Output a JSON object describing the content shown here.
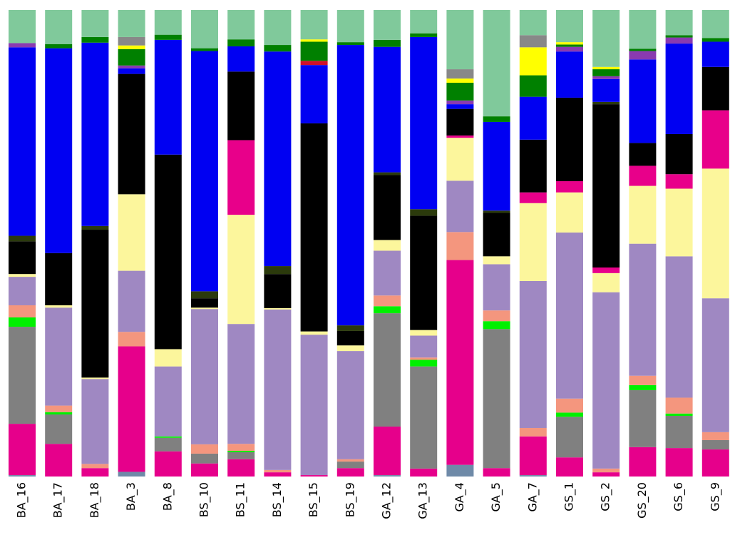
{
  "chart_data": {
    "type": "stacked_bar",
    "categories": [
      "BA_16",
      "BA_17",
      "BA_18",
      "BA_3",
      "BA_8",
      "BS_10",
      "BS_11",
      "BS_14",
      "BS_15",
      "BS_19",
      "GA_12",
      "GA_13",
      "GA_4",
      "GA_5",
      "GA_7",
      "GS_1",
      "GS_2",
      "GS_20",
      "GS_6",
      "GS_9"
    ],
    "ylim": [
      0,
      100
    ],
    "series": [
      {
        "color": "#6f8aa8",
        "values": [
          0.3,
          0,
          0,
          1,
          0,
          0,
          0,
          0,
          0,
          0,
          0.3,
          0,
          2.5,
          0,
          0.3,
          0,
          0,
          0,
          0,
          0
        ]
      },
      {
        "color": "#e6008b",
        "values": [
          11,
          7,
          1.8,
          26.9,
          5.4,
          2.8,
          3.7,
          0.9,
          0.3,
          1.8,
          10.4,
          1.7,
          43.9,
          1.8,
          8.3,
          4.1,
          0.9,
          6.3,
          6.1,
          5.8
        ]
      },
      {
        "color": "#808080",
        "values": [
          20.8,
          6.3,
          0,
          0,
          2.9,
          2.1,
          1.5,
          0,
          0,
          1.4,
          24.3,
          21.9,
          0,
          29.8,
          0,
          8.7,
          0,
          12.2,
          6.9,
          2
        ]
      },
      {
        "color": "#00f000",
        "values": [
          2,
          0.5,
          0,
          0,
          0.3,
          0,
          0.3,
          0,
          0,
          0,
          1.5,
          1.4,
          0,
          1.7,
          0,
          0.9,
          0,
          1.1,
          0.5,
          0
        ]
      },
      {
        "color": "#f4967e",
        "values": [
          2.6,
          1.4,
          0.9,
          3.1,
          0,
          2,
          1.5,
          0.5,
          0,
          0.5,
          2.3,
          0.5,
          6,
          2.3,
          1.8,
          3,
          0.8,
          2,
          3.4,
          1.7
        ]
      },
      {
        "color": "#9f88c2",
        "values": [
          6.1,
          21,
          18.2,
          13.1,
          15,
          29,
          25.7,
          34.4,
          30.1,
          23.2,
          9.6,
          4.7,
          11,
          9.9,
          31.5,
          35.6,
          37.8,
          28.3,
          30.3,
          28.7
        ]
      },
      {
        "color": "#fcf69c",
        "values": [
          0.6,
          0.5,
          0.3,
          16.4,
          3.7,
          0.3,
          23.4,
          0.3,
          0.7,
          1.2,
          2.3,
          1.2,
          9.2,
          1.7,
          16.7,
          8.6,
          4.1,
          12.4,
          14.5,
          27.8
        ]
      },
      {
        "color": "#e8008a",
        "values": [
          0,
          0,
          0,
          0,
          0,
          0,
          16,
          0,
          0,
          0,
          0,
          0,
          0.5,
          0,
          2.3,
          2.4,
          1.2,
          4.3,
          3.1,
          12.5
        ]
      },
      {
        "color": "#000000",
        "values": [
          7,
          11.2,
          31.7,
          25.8,
          41.7,
          2,
          14.7,
          7.3,
          44.6,
          3.1,
          13.9,
          24.5,
          5.7,
          9.3,
          11.3,
          17.9,
          35,
          4.9,
          8.6,
          9.3
        ]
      },
      {
        "color": "#2b3a0c",
        "values": [
          1.2,
          0,
          0.8,
          0,
          0,
          1.5,
          0,
          1.7,
          0,
          1.2,
          0.6,
          1.4,
          0,
          0.5,
          0,
          0,
          0.5,
          0,
          0,
          0
        ]
      },
      {
        "color": "#0000f2",
        "values": [
          40.4,
          43.9,
          39.3,
          1.2,
          24.6,
          51.5,
          5.4,
          46,
          12.5,
          60.1,
          26.9,
          36.9,
          1,
          19,
          9.2,
          9.9,
          4.9,
          17.9,
          19.4,
          5.4
        ]
      },
      {
        "color": "#8a3ab0",
        "values": [
          0.9,
          0,
          0,
          0.6,
          0,
          0,
          0,
          0,
          0,
          0,
          0,
          0,
          0.8,
          0,
          0,
          1,
          0.6,
          1.8,
          1.3,
          0
        ]
      },
      {
        "color": "#d0102a",
        "values": [
          0,
          0,
          0,
          0,
          0,
          0,
          0,
          0,
          0.9,
          0,
          0,
          0,
          0,
          0,
          0,
          0,
          0,
          0,
          0,
          0
        ]
      },
      {
        "color": "#008000",
        "values": [
          0,
          0.9,
          1.2,
          3.5,
          1.1,
          0.6,
          1.5,
          1.4,
          4.1,
          0.6,
          1.5,
          0.8,
          3.8,
          1.2,
          4.6,
          0.5,
          1.5,
          0.5,
          0.5,
          0.8
        ]
      },
      {
        "color": "#ffff00",
        "values": [
          0,
          0,
          0,
          0.8,
          0,
          0,
          0,
          0,
          0.5,
          0,
          0,
          0,
          0.9,
          0,
          6,
          0.5,
          0.5,
          0,
          0,
          0
        ]
      },
      {
        "color": "#888888",
        "values": [
          0,
          0,
          0,
          1.8,
          0,
          0,
          0,
          0,
          0,
          0,
          0,
          0,
          2,
          0,
          2.6,
          0,
          0,
          0,
          0,
          0
        ]
      },
      {
        "color": "#80c99b",
        "values": [
          7.1,
          7.3,
          5.8,
          5.8,
          5.3,
          8.2,
          6.3,
          7.5,
          6.3,
          6.9,
          6.4,
          5,
          12.7,
          22.8,
          5.4,
          6.9,
          12.2,
          8.3,
          5.4,
          6
        ]
      }
    ]
  }
}
